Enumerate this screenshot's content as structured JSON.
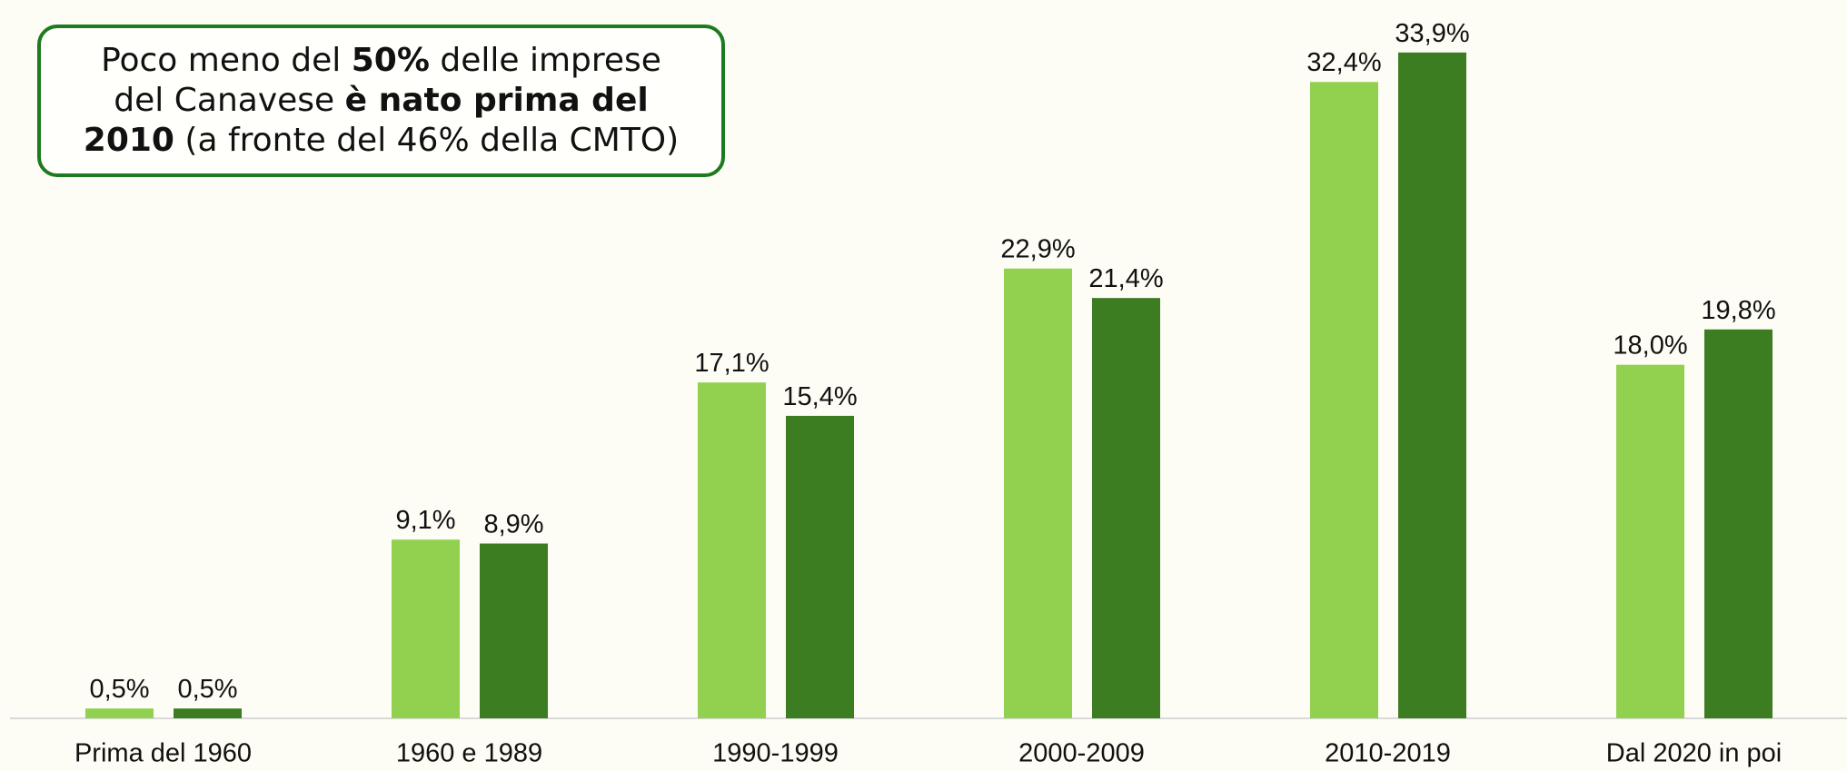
{
  "annotation": [
    "Poco meno del ",
    "50%",
    " delle imprese",
    "del Canavese ",
    "è nato prima del",
    "2010",
    " (a fronte del 46% della CMTO)"
  ],
  "chart_data": {
    "type": "bar",
    "categories": [
      "Prima del 1960",
      "1960 e 1989",
      "1990-1999",
      "2000-2009",
      "2010-2019",
      "Dal 2020 in poi"
    ],
    "series": [
      {
        "color": "#92d050",
        "values": [
          0.5,
          9.1,
          17.1,
          22.9,
          32.4,
          18.0
        ],
        "value_labels": [
          "0,5%",
          "9,1%",
          "17,1%",
          "22,9%",
          "32,4%",
          "18,0%"
        ]
      },
      {
        "color": "#3c7d22",
        "values": [
          0.5,
          8.9,
          15.4,
          21.4,
          33.9,
          19.8
        ],
        "value_labels": [
          "0,5%",
          "8,9%",
          "15,4%",
          "21,4%",
          "33,9%",
          "19,8%"
        ]
      }
    ],
    "ylim": [
      0,
      35
    ]
  }
}
